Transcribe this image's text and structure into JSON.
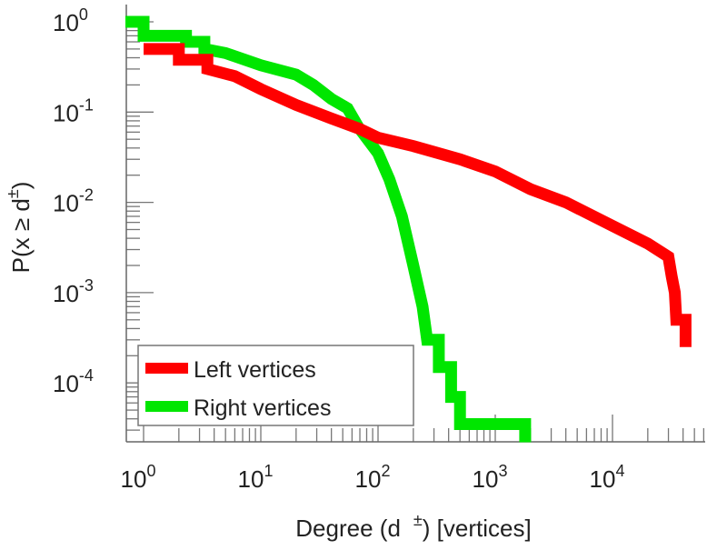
{
  "chart_data": {
    "type": "line",
    "scale": {
      "x": "log",
      "y": "log"
    },
    "xlabel_main": "Degree (d",
    "xlabel_sup": "±",
    "xlabel_tail": ") [vertices]",
    "ylabel_main": "P(x ≥ d",
    "ylabel_sup": "±",
    "ylabel_tail": ")",
    "xlim": [
      0.7,
      60000
    ],
    "ylim": [
      2.2e-05,
      1.55
    ],
    "x_ticks": [
      {
        "base": "10",
        "exp": "0",
        "value": 1
      },
      {
        "base": "10",
        "exp": "1",
        "value": 10
      },
      {
        "base": "10",
        "exp": "2",
        "value": 100
      },
      {
        "base": "10",
        "exp": "3",
        "value": 1000
      },
      {
        "base": "10",
        "exp": "4",
        "value": 10000
      }
    ],
    "y_ticks": [
      {
        "base": "10",
        "exp": "0",
        "value": 1
      },
      {
        "base": "10",
        "exp": "-1",
        "value": 0.1
      },
      {
        "base": "10",
        "exp": "-2",
        "value": 0.01
      },
      {
        "base": "10",
        "exp": "-3",
        "value": 0.001
      },
      {
        "base": "10",
        "exp": "-4",
        "value": 0.0001
      }
    ],
    "legend_position": "bottom-left",
    "series": [
      {
        "name": "Left vertices",
        "color": "#ff0000",
        "points": [
          [
            1,
            0.5
          ],
          [
            2,
            0.5
          ],
          [
            2,
            0.38
          ],
          [
            3.5,
            0.38
          ],
          [
            3.5,
            0.3
          ],
          [
            6,
            0.25
          ],
          [
            10,
            0.18
          ],
          [
            20,
            0.12
          ],
          [
            40,
            0.085
          ],
          [
            70,
            0.065
          ],
          [
            100,
            0.052
          ],
          [
            200,
            0.042
          ],
          [
            500,
            0.03
          ],
          [
            1000,
            0.022
          ],
          [
            2000,
            0.014
          ],
          [
            4000,
            0.01
          ],
          [
            10000,
            0.0055
          ],
          [
            20000,
            0.0035
          ],
          [
            30000,
            0.0025
          ],
          [
            32000,
            0.0015
          ],
          [
            34000,
            0.001
          ],
          [
            35000,
            0.0005
          ],
          [
            42000,
            0.0005
          ],
          [
            42000,
            0.00025
          ]
        ]
      },
      {
        "name": "Right vertices",
        "color": "#00e600",
        "points": [
          [
            0.7,
            1
          ],
          [
            1,
            1
          ],
          [
            1,
            0.7
          ],
          [
            2.3,
            0.7
          ],
          [
            2.3,
            0.6
          ],
          [
            3.3,
            0.6
          ],
          [
            3.3,
            0.5
          ],
          [
            5,
            0.45
          ],
          [
            10,
            0.33
          ],
          [
            20,
            0.26
          ],
          [
            28,
            0.2
          ],
          [
            40,
            0.14
          ],
          [
            55,
            0.11
          ],
          [
            68,
            0.068
          ],
          [
            100,
            0.035
          ],
          [
            125,
            0.018
          ],
          [
            160,
            0.007
          ],
          [
            200,
            0.002
          ],
          [
            240,
            0.0007
          ],
          [
            262,
            0.0003
          ],
          [
            330,
            0.0003
          ],
          [
            330,
            0.00015
          ],
          [
            420,
            0.00015
          ],
          [
            420,
            7e-05
          ],
          [
            500,
            7e-05
          ],
          [
            500,
            3.5e-05
          ],
          [
            1800,
            3.5e-05
          ],
          [
            1800,
            2.2e-05
          ]
        ]
      }
    ]
  }
}
